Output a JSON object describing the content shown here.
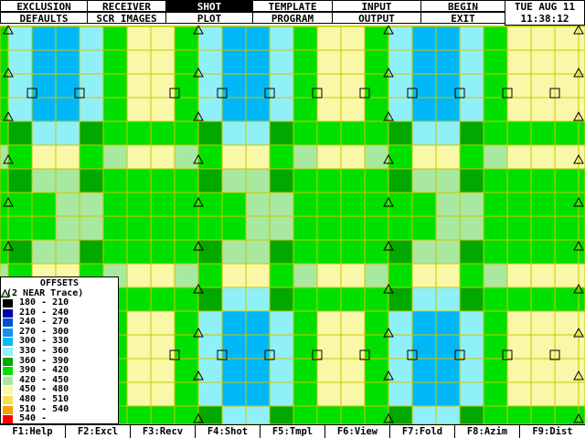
{
  "menu": {
    "row1": [
      "EXCLUSION",
      "RECEIVER",
      "SHOT",
      "TEMPLATE",
      "INPUT",
      "BEGIN"
    ],
    "row2": [
      "DEFAULTS",
      "SCR IMAGES",
      "PLOT",
      "PROGRAM",
      "OUTPUT",
      "EXIT"
    ],
    "active": "SHOT"
  },
  "clock": {
    "date": "TUE AUG 11",
    "time": "11:38:12"
  },
  "legend": {
    "title": "OFFSETS",
    "subtitle": "(2 NEAR Trace)",
    "items": [
      {
        "label": "180 - 210",
        "color": "#000000"
      },
      {
        "label": "210 - 240",
        "color": "#0000a8"
      },
      {
        "label": "240 - 270",
        "color": "#0050d8"
      },
      {
        "label": "270 - 300",
        "color": "#1890f0"
      },
      {
        "label": "300 - 330",
        "color": "#00b8f8"
      },
      {
        "label": "330 - 360",
        "color": "#90f0f8"
      },
      {
        "label": "360 - 390",
        "color": "#00a800"
      },
      {
        "label": "390 - 420",
        "color": "#00e000"
      },
      {
        "label": "420 - 450",
        "color": "#a8e8a0"
      },
      {
        "label": "450 - 480",
        "color": "#f8f8a8"
      },
      {
        "label": "480 - 510",
        "color": "#f8e050"
      },
      {
        "label": "510 - 540",
        "color": "#f8a000"
      },
      {
        "label": "540 -",
        "color": "#f80000"
      }
    ]
  },
  "fkeys": [
    "F1:Help",
    "F2:Excl",
    "F3:Recv",
    "F4:Shot",
    "F5:Tmpl",
    "F6:View",
    "F7:Fold",
    "F8:Azim",
    "F9:Dist"
  ],
  "colors": {
    "grid": "#c8c800",
    "symbol": "#000000"
  },
  "symbols": {
    "triangle": "receiver-triangle-icon",
    "square": "shot-square-icon"
  }
}
